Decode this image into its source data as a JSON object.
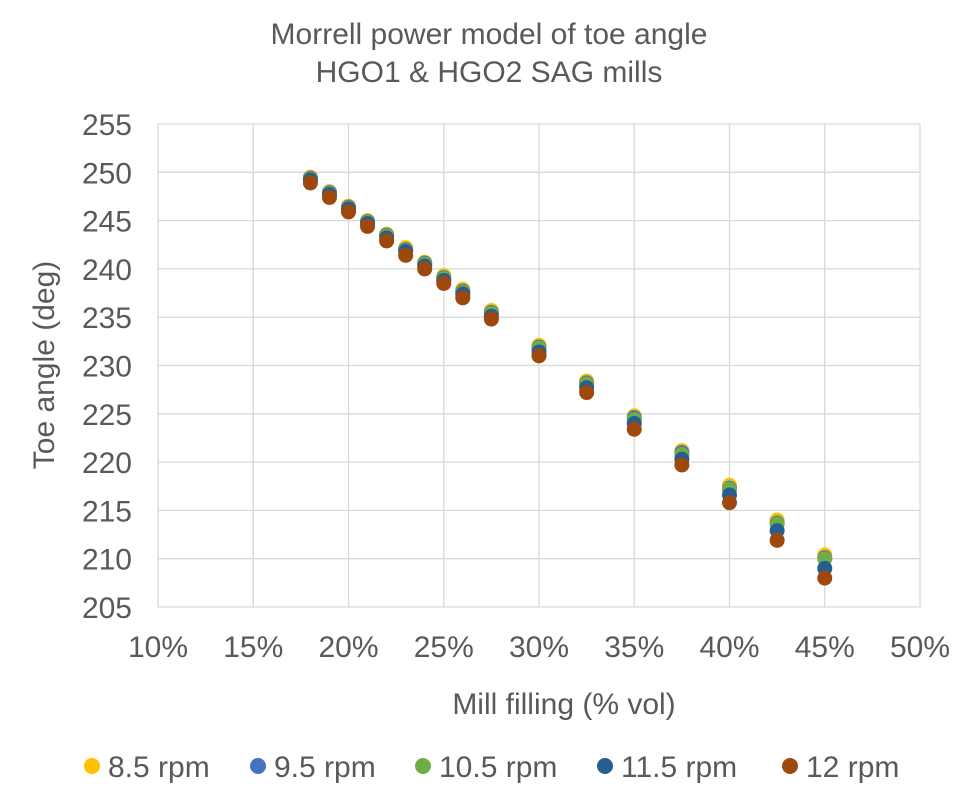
{
  "chart_data": {
    "type": "scatter",
    "title_lines": [
      "Morrell power model of toe angle",
      "HGO1 & HGO2 SAG mills"
    ],
    "xlabel": "Mill filling (% vol)",
    "ylabel": "Toe angle (deg)",
    "xlim": [
      0.1,
      0.5
    ],
    "ylim": [
      205,
      255
    ],
    "x_ticks": [
      0.1,
      0.15,
      0.2,
      0.25,
      0.3,
      0.35,
      0.4,
      0.45,
      0.5
    ],
    "x_tick_labels": [
      "10%",
      "15%",
      "20%",
      "25%",
      "30%",
      "35%",
      "40%",
      "45%",
      "50%"
    ],
    "y_ticks": [
      205,
      210,
      215,
      220,
      225,
      230,
      235,
      240,
      245,
      250,
      255
    ],
    "y_tick_labels": [
      "205",
      "210",
      "215",
      "220",
      "225",
      "230",
      "235",
      "240",
      "245",
      "250",
      "255"
    ],
    "grid": true,
    "legend_position": "bottom",
    "x": [
      0.18,
      0.19,
      0.2,
      0.21,
      0.22,
      0.23,
      0.24,
      0.25,
      0.26,
      0.275,
      0.3,
      0.325,
      0.35,
      0.375,
      0.4,
      0.425,
      0.45
    ],
    "series": [
      {
        "name": "8.5 rpm",
        "color": "#FFC000",
        "values": [
          249.5,
          248.0,
          246.5,
          245.0,
          243.6,
          242.2,
          240.7,
          239.3,
          237.9,
          235.7,
          232.1,
          228.4,
          224.8,
          221.2,
          217.6,
          214.0,
          210.4
        ]
      },
      {
        "name": "9.5 rpm",
        "color": "#4472C4",
        "values": [
          249.4,
          247.9,
          246.4,
          244.9,
          243.5,
          242.0,
          240.6,
          239.1,
          237.7,
          235.5,
          231.9,
          228.2,
          224.6,
          221.0,
          217.3,
          213.7,
          210.1
        ]
      },
      {
        "name": "10.5 rpm",
        "color": "#70AD47",
        "values": [
          249.3,
          247.8,
          246.3,
          244.8,
          243.4,
          241.9,
          240.5,
          239.0,
          237.6,
          235.4,
          231.8,
          228.1,
          224.4,
          220.8,
          217.2,
          213.6,
          210.0
        ]
      },
      {
        "name": "11.5 rpm",
        "color": "#255E91",
        "values": [
          249.2,
          247.7,
          246.2,
          244.7,
          243.2,
          241.8,
          240.3,
          238.8,
          237.4,
          235.1,
          231.4,
          227.7,
          224.0,
          220.3,
          216.6,
          212.9,
          209.0
        ]
      },
      {
        "name": "12 rpm",
        "color": "#9E480E",
        "values": [
          248.9,
          247.4,
          245.9,
          244.4,
          242.9,
          241.4,
          240.0,
          238.5,
          237.0,
          234.8,
          231.0,
          227.2,
          223.4,
          219.7,
          215.8,
          211.9,
          208.0
        ]
      }
    ]
  }
}
